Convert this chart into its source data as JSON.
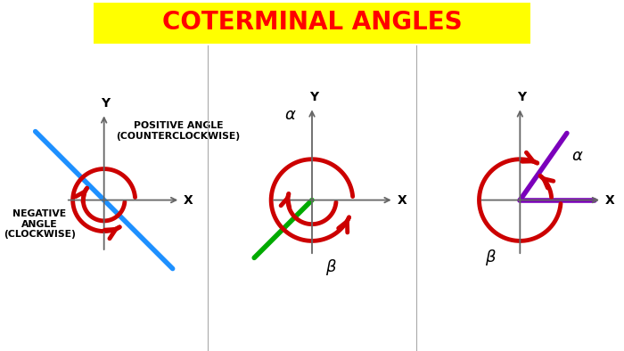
{
  "title": "COTERMINAL ANGLES",
  "title_color": "#FF0000",
  "title_bg_color": "#FFFF00",
  "bg_color": "#FFFFFF",
  "panel1": {
    "label_pos": "POSITIVE ANGLE\n(COUNTERCLOCKWISE)",
    "label_neg": "NEGATIVE\nANGLE\n(CLOCKWISE)",
    "line_color": "#1E90FF",
    "arrow_color": "#CC0000"
  },
  "panel2": {
    "alpha_label": "α",
    "beta_label": "β",
    "line_color": "#00AA00",
    "arrow_color": "#CC0000"
  },
  "panel3": {
    "alpha_label": "α",
    "beta_label": "β",
    "line_color": "#7B00BB",
    "arrow_color": "#CC0000"
  }
}
